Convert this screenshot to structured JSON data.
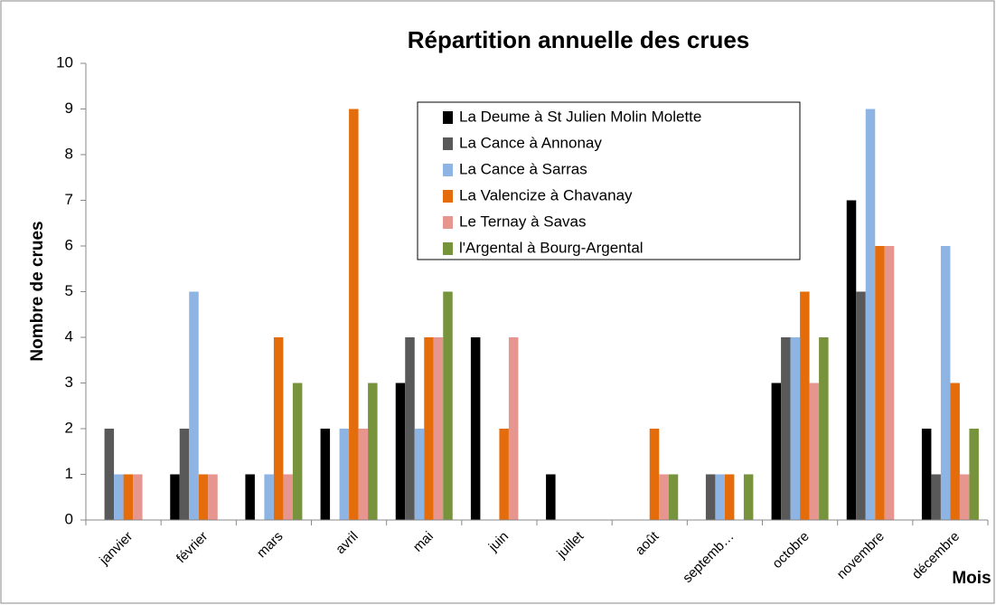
{
  "chart_data": {
    "type": "bar",
    "title": "Répartition annuelle des crues",
    "y_label": "Nombre de crues",
    "x_label": "Mois",
    "categories": [
      "janvier",
      "février",
      "mars",
      "avril",
      "mai",
      "juin",
      "juillet",
      "août",
      "septemb…",
      "octobre",
      "novembre",
      "décembre"
    ],
    "series": [
      {
        "name": "La Deume à St Julien Molin Molette",
        "color": "#000000",
        "values": [
          0,
          1,
          1,
          2,
          3,
          4,
          1,
          0,
          0,
          3,
          7,
          2
        ]
      },
      {
        "name": "La Cance à Annonay",
        "color": "#595959",
        "values": [
          2,
          2,
          0,
          0,
          4,
          0,
          0,
          0,
          1,
          4,
          5,
          1
        ]
      },
      {
        "name": "La Cance à Sarras",
        "color": "#8eb4e3",
        "values": [
          1,
          5,
          1,
          2,
          2,
          0,
          0,
          0,
          1,
          4,
          9,
          6
        ]
      },
      {
        "name": "La Valencize à Chavanay",
        "color": "#e46c0a",
        "values": [
          1,
          1,
          4,
          9,
          4,
          2,
          0,
          2,
          1,
          5,
          6,
          3
        ]
      },
      {
        "name": "Le Ternay à Savas",
        "color": "#e6958f",
        "values": [
          1,
          1,
          1,
          2,
          4,
          4,
          0,
          1,
          0,
          3,
          6,
          1
        ]
      },
      {
        "name": "l'Argental à Bourg-Argental",
        "color": "#77933c",
        "values": [
          0,
          0,
          3,
          3,
          5,
          0,
          0,
          1,
          1,
          4,
          0,
          2
        ]
      }
    ],
    "ylim": [
      0,
      10
    ],
    "yticks": [
      0,
      1,
      2,
      3,
      4,
      5,
      6,
      7,
      8,
      9,
      10
    ],
    "grid": false
  }
}
